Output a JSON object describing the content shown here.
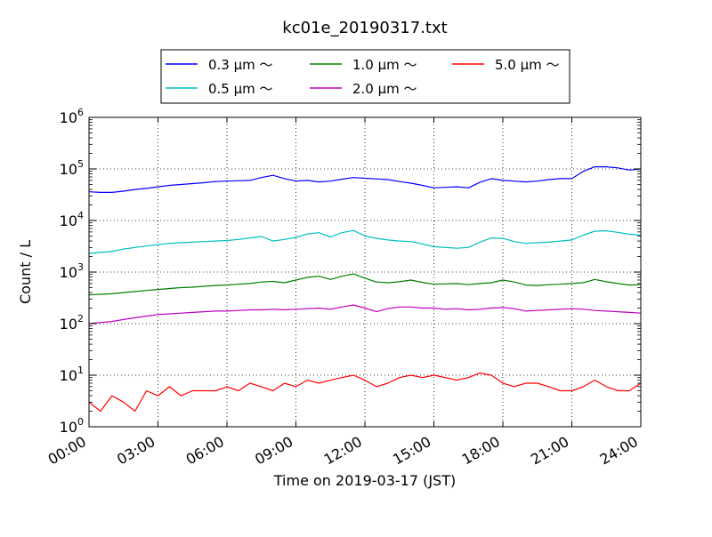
{
  "chart_data": {
    "type": "line",
    "title": "kc01e_20190317.txt",
    "xlabel": "Time on 2019-03-17 (JST)",
    "ylabel": "Count / L",
    "x_ticks": [
      "00:00",
      "03:00",
      "06:00",
      "09:00",
      "12:00",
      "15:00",
      "18:00",
      "21:00",
      "24:00"
    ],
    "xlim": [
      "00:00",
      "24:00"
    ],
    "y_scale": "log",
    "ylim": [
      1,
      1000000
    ],
    "y_ticks": [
      {
        "base": "10",
        "exp": "0",
        "value": 1
      },
      {
        "base": "10",
        "exp": "1",
        "value": 10
      },
      {
        "base": "10",
        "exp": "2",
        "value": 100
      },
      {
        "base": "10",
        "exp": "3",
        "value": 1000
      },
      {
        "base": "10",
        "exp": "4",
        "value": 10000
      },
      {
        "base": "10",
        "exp": "5",
        "value": 100000
      },
      {
        "base": "10",
        "exp": "6",
        "value": 1000000
      }
    ],
    "grid": true,
    "legend_position": "top-center",
    "x": [
      "00:00",
      "00:30",
      "01:00",
      "01:30",
      "02:00",
      "02:30",
      "03:00",
      "03:30",
      "04:00",
      "04:30",
      "05:00",
      "05:30",
      "06:00",
      "06:30",
      "07:00",
      "07:30",
      "08:00",
      "08:30",
      "09:00",
      "09:30",
      "10:00",
      "10:30",
      "11:00",
      "11:30",
      "12:00",
      "12:30",
      "13:00",
      "13:30",
      "14:00",
      "14:30",
      "15:00",
      "15:30",
      "16:00",
      "16:30",
      "17:00",
      "17:30",
      "18:00",
      "18:30",
      "19:00",
      "19:30",
      "20:00",
      "20:30",
      "21:00",
      "21:30",
      "22:00",
      "22:30",
      "23:00",
      "23:30",
      "24:00"
    ],
    "series": [
      {
        "name": "0.3 μm ～",
        "color": "#0000ff",
        "values": [
          36000,
          35000,
          35000,
          37000,
          40000,
          42000,
          45000,
          48000,
          50000,
          52000,
          54000,
          57000,
          58000,
          59000,
          60000,
          68000,
          75000,
          65000,
          58000,
          60000,
          56000,
          58000,
          63000,
          68000,
          66000,
          64000,
          62000,
          57000,
          53000,
          48000,
          43000,
          44000,
          45000,
          43000,
          55000,
          65000,
          60000,
          58000,
          56000,
          58000,
          62000,
          65000,
          65000,
          90000,
          110000,
          110000,
          105000,
          95000,
          100000
        ]
      },
      {
        "name": "0.5 μm ～",
        "color": "#00bfbf",
        "values": [
          2300,
          2400,
          2500,
          2800,
          3000,
          3200,
          3400,
          3600,
          3700,
          3800,
          3900,
          4000,
          4100,
          4300,
          4600,
          4900,
          4000,
          4300,
          4700,
          5500,
          5800,
          4800,
          5800,
          6400,
          5000,
          4500,
          4200,
          4000,
          3900,
          3500,
          3100,
          3000,
          2900,
          3000,
          3800,
          4600,
          4500,
          3900,
          3600,
          3700,
          3800,
          4000,
          4200,
          5200,
          6200,
          6300,
          5900,
          5400,
          5200
        ]
      },
      {
        "name": "1.0 μm ～",
        "color": "#008000",
        "values": [
          360,
          370,
          380,
          400,
          420,
          440,
          460,
          480,
          500,
          510,
          530,
          550,
          560,
          580,
          600,
          640,
          660,
          620,
          700,
          790,
          830,
          720,
          830,
          920,
          760,
          640,
          620,
          650,
          700,
          630,
          580,
          590,
          600,
          570,
          600,
          620,
          700,
          640,
          560,
          550,
          570,
          580,
          600,
          620,
          720,
          650,
          600,
          560,
          570
        ]
      },
      {
        "name": "2.0 μm ～",
        "color": "#bf00bf",
        "values": [
          100,
          105,
          110,
          120,
          130,
          140,
          150,
          155,
          160,
          165,
          170,
          175,
          175,
          180,
          185,
          185,
          190,
          185,
          190,
          195,
          200,
          190,
          210,
          230,
          200,
          170,
          195,
          210,
          210,
          200,
          200,
          190,
          195,
          185,
          190,
          200,
          205,
          195,
          175,
          180,
          185,
          190,
          195,
          190,
          180,
          175,
          170,
          165,
          160
        ]
      },
      {
        "name": "5.0 μm ～",
        "color": "#ff0000",
        "values": [
          3,
          2,
          4,
          3,
          2,
          5,
          4,
          6,
          4,
          5,
          5,
          5,
          6,
          5,
          7,
          6,
          5,
          7,
          6,
          8,
          7,
          8,
          9,
          10,
          8,
          6,
          7,
          9,
          10,
          9,
          10,
          9,
          8,
          9,
          11,
          10,
          7,
          6,
          7,
          7,
          6,
          5,
          5,
          6,
          8,
          6,
          5,
          5,
          7
        ]
      }
    ]
  }
}
